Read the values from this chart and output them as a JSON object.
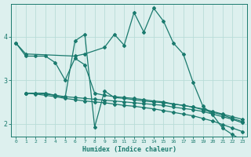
{
  "xlabel": "Humidex (Indice chaleur)",
  "ylabel": "",
  "bg_color": "#ddf0ee",
  "grid_color": "#b8dcd8",
  "line_color": "#1a7a6e",
  "xlim": [
    -0.5,
    23.5
  ],
  "ylim": [
    1.7,
    4.75
  ],
  "xticks": [
    0,
    1,
    2,
    3,
    4,
    5,
    6,
    7,
    8,
    9,
    10,
    11,
    12,
    13,
    14,
    15,
    16,
    17,
    18,
    19,
    20,
    21,
    22,
    23
  ],
  "yticks": [
    2,
    3,
    4
  ],
  "lines": [
    {
      "x": [
        0,
        1,
        6,
        7,
        9,
        10,
        11,
        12,
        13,
        14,
        15,
        16,
        17,
        18,
        19,
        20,
        21,
        22,
        23
      ],
      "y": [
        3.85,
        3.6,
        3.55,
        3.6,
        3.75,
        4.05,
        3.8,
        4.55,
        4.1,
        4.65,
        4.35,
        3.85,
        3.6,
        2.95,
        2.4,
        2.2,
        1.9,
        1.75,
        1.62
      ]
    },
    {
      "x": [
        1,
        2,
        3,
        4,
        5,
        6,
        7,
        8,
        9,
        10,
        11,
        12,
        13,
        14,
        15,
        16,
        17,
        18,
        19,
        20,
        21,
        22,
        23
      ],
      "y": [
        2.7,
        2.7,
        2.7,
        2.65,
        2.6,
        3.9,
        4.05,
        1.92,
        2.75,
        2.6,
        2.58,
        2.55,
        2.52,
        2.5,
        2.48,
        2.45,
        2.42,
        2.38,
        2.32,
        2.26,
        2.2,
        2.12,
        2.05
      ]
    },
    {
      "x": [
        0,
        1,
        2,
        3,
        4,
        5,
        6,
        7,
        8,
        9,
        10,
        11,
        12,
        13,
        14,
        15,
        16,
        17,
        18,
        19,
        20,
        21,
        22,
        23
      ],
      "y": [
        3.85,
        3.55,
        3.55,
        3.55,
        3.4,
        3.0,
        3.5,
        3.35,
        2.7,
        2.65,
        2.62,
        2.6,
        2.58,
        2.55,
        2.52,
        2.5,
        2.45,
        2.42,
        2.38,
        2.34,
        2.28,
        2.22,
        2.16,
        2.1
      ]
    },
    {
      "x": [
        1,
        2,
        3,
        4,
        5,
        6,
        7,
        8,
        9,
        10,
        11,
        12,
        13,
        14,
        15,
        16,
        17,
        18,
        19,
        20,
        21,
        22,
        23
      ],
      "y": [
        2.7,
        2.7,
        2.68,
        2.65,
        2.62,
        2.6,
        2.58,
        2.56,
        2.54,
        2.52,
        2.5,
        2.48,
        2.46,
        2.44,
        2.42,
        2.38,
        2.35,
        2.32,
        2.28,
        2.22,
        2.16,
        2.1,
        2.02
      ]
    },
    {
      "x": [
        1,
        2,
        3,
        4,
        5,
        6,
        7,
        8,
        9,
        10,
        11,
        12,
        13,
        14,
        15,
        16,
        17,
        18,
        19,
        20,
        21,
        22,
        23
      ],
      "y": [
        2.7,
        2.68,
        2.65,
        2.62,
        2.58,
        2.55,
        2.52,
        2.5,
        2.48,
        2.45,
        2.42,
        2.4,
        2.37,
        2.34,
        2.3,
        2.26,
        2.22,
        2.18,
        2.12,
        2.06,
        1.98,
        1.9,
        1.82
      ]
    }
  ]
}
